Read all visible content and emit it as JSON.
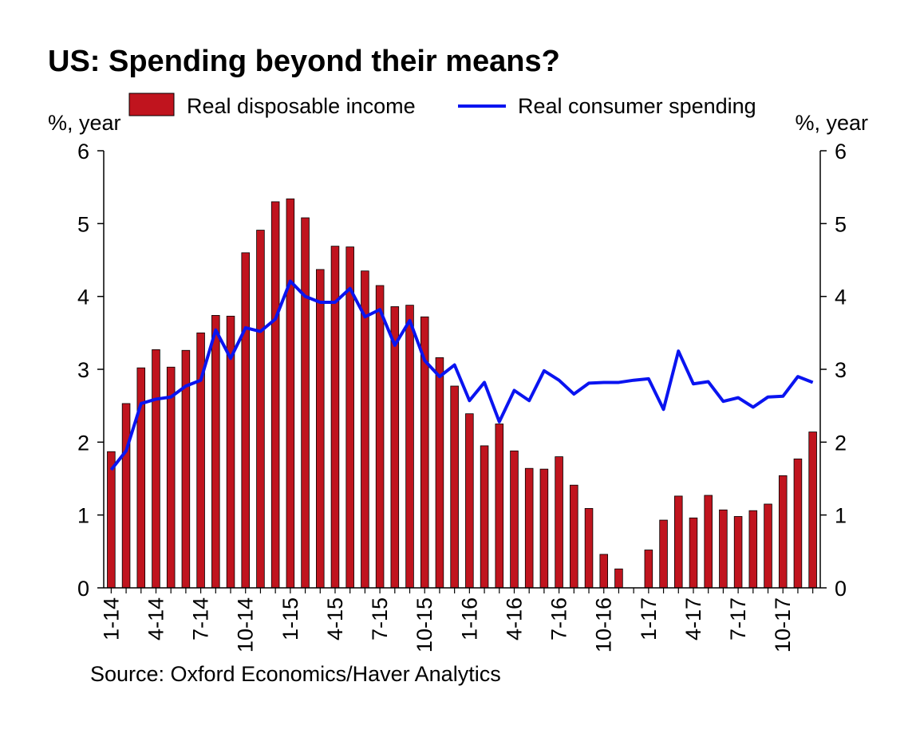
{
  "title": "US: Spending beyond their means?",
  "source": "Source: Oxford Economics/Haver Analytics",
  "colors": {
    "bar": "#C0141E",
    "line": "#0A14F0",
    "axis": "#000000"
  },
  "chart_data": {
    "type": "bar",
    "title": "US: Spending beyond their means?",
    "left_axis_label": "%, year",
    "right_axis_label": "%, year",
    "ylim": [
      0,
      6
    ],
    "y_ticks": [
      0,
      1,
      2,
      3,
      4,
      5,
      6
    ],
    "grid": false,
    "legend_position": "top",
    "x_tick_labels": [
      "1-14",
      "4-14",
      "7-14",
      "10-14",
      "1-15",
      "4-15",
      "7-15",
      "10-15",
      "1-16",
      "4-16",
      "7-16",
      "10-16",
      "1-17",
      "4-17",
      "7-17",
      "10-17"
    ],
    "categories": [
      "Jan 14",
      "Feb 14",
      "Mar 14",
      "Apr 14",
      "May 14",
      "Jun 14",
      "Jul 14",
      "Aug 14",
      "Sep 14",
      "Oct 14",
      "Nov 14",
      "Dec 14",
      "Jan 15",
      "Feb 15",
      "Mar 15",
      "Apr 15",
      "May 15",
      "Jun 15",
      "Jul 15",
      "Aug 15",
      "Sep 15",
      "Oct 15",
      "Nov 15",
      "Dec 15",
      "Jan 16",
      "Feb 16",
      "Mar 16",
      "Apr 16",
      "May 16",
      "Jun 16",
      "Jul 16",
      "Aug 16",
      "Sep 16",
      "Oct 16",
      "Nov 16",
      "Dec 16",
      "Jan 17",
      "Feb 17",
      "Mar 17",
      "Apr 17",
      "May 17",
      "Jun 17",
      "Jul 17",
      "Aug 17",
      "Sep 17",
      "Oct 17",
      "Nov 17",
      "Dec 17"
    ],
    "series": [
      {
        "name": "Real disposable income",
        "type": "bar",
        "values": [
          1.87,
          2.53,
          3.02,
          3.27,
          3.03,
          3.26,
          3.5,
          3.74,
          3.73,
          4.6,
          4.91,
          5.3,
          5.34,
          5.08,
          4.37,
          4.69,
          4.68,
          4.35,
          4.15,
          3.86,
          3.88,
          3.72,
          3.16,
          2.77,
          2.39,
          1.95,
          2.25,
          1.88,
          1.64,
          1.63,
          1.8,
          1.41,
          1.09,
          0.46,
          0.26,
          0.0,
          0.52,
          0.93,
          1.26,
          0.96,
          1.27,
          1.07,
          0.98,
          1.06,
          1.15,
          1.54,
          1.77,
          2.14
        ]
      },
      {
        "name": "Real consumer spending",
        "type": "line",
        "values": [
          1.62,
          1.88,
          2.53,
          2.59,
          2.62,
          2.77,
          2.85,
          3.54,
          3.15,
          3.57,
          3.52,
          3.69,
          4.21,
          4.0,
          3.92,
          3.92,
          4.11,
          3.72,
          3.82,
          3.33,
          3.67,
          3.12,
          2.9,
          3.06,
          2.57,
          2.82,
          2.28,
          2.71,
          2.57,
          2.98,
          2.85,
          2.66,
          2.81,
          2.82,
          2.82,
          2.85,
          2.87,
          2.45,
          3.25,
          2.8,
          2.83,
          2.56,
          2.61,
          2.48,
          2.62,
          2.63,
          2.9,
          2.82
        ]
      }
    ]
  }
}
